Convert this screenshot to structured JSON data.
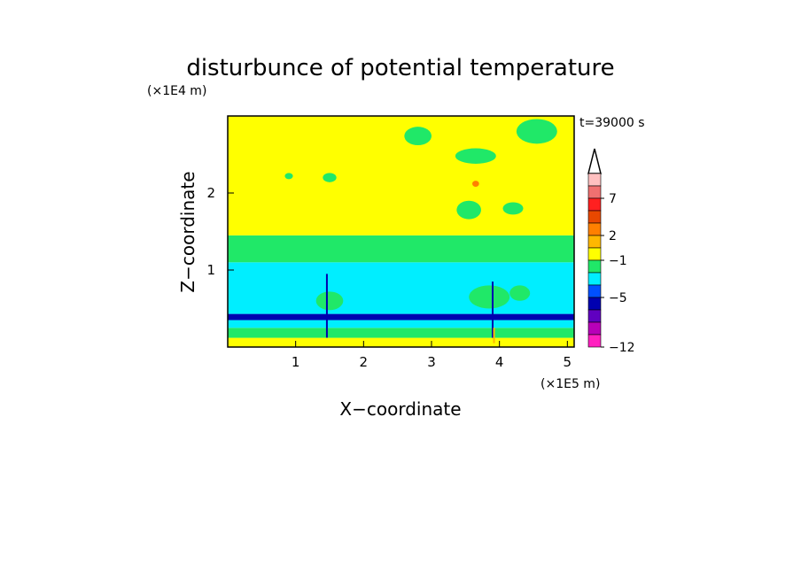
{
  "chart_data": {
    "type": "heatmap",
    "title": "disturbunce of potential temperature",
    "time_label": "t=39000 s",
    "xlabel": "X−coordinate",
    "ylabel": "Z−coordinate",
    "x_unit": "(×1E5 m)",
    "y_unit": "(×1E4 m)",
    "x_ticks": [
      "1",
      "2",
      "3",
      "4",
      "5"
    ],
    "y_ticks": [
      "1",
      "2"
    ],
    "xlim": [
      0,
      5.1
    ],
    "ylim": [
      0,
      3.0
    ],
    "colorbar": {
      "labels": [
        "7",
        "2",
        "−1",
        "−5",
        "−12"
      ],
      "colors": [
        "#ffc0c0",
        "#f07070",
        "#ff2020",
        "#e84800",
        "#ff8000",
        "#ffb800",
        "#ffff00",
        "#20e868",
        "#00eeff",
        "#0050ff",
        "#0000b0",
        "#6000c0",
        "#b800b8",
        "#ff20c0"
      ],
      "extend_top": true
    },
    "bands": [
      {
        "z": [
          0.0,
          0.12
        ],
        "color": "#ffff00"
      },
      {
        "z": [
          0.12,
          0.25
        ],
        "color": "#20e868"
      },
      {
        "z": [
          0.25,
          0.35
        ],
        "color": "#00eeff"
      },
      {
        "z": [
          0.35,
          0.43
        ],
        "color": "#0000b0"
      },
      {
        "z": [
          0.43,
          1.1
        ],
        "color": "#00eeff"
      },
      {
        "z": [
          1.1,
          1.45
        ],
        "color": "#20e868"
      },
      {
        "z": [
          1.45,
          3.0
        ],
        "color": "#ffff00"
      }
    ],
    "patches": [
      {
        "x": 2.8,
        "z": 2.74,
        "rx": 0.2,
        "rz": 0.12,
        "color": "#20e868"
      },
      {
        "x": 4.55,
        "z": 2.8,
        "rx": 0.3,
        "rz": 0.16,
        "color": "#20e868"
      },
      {
        "x": 3.65,
        "z": 2.48,
        "rx": 0.3,
        "rz": 0.1,
        "color": "#20e868"
      },
      {
        "x": 3.55,
        "z": 1.78,
        "rx": 0.18,
        "rz": 0.12,
        "color": "#20e868"
      },
      {
        "x": 4.2,
        "z": 1.8,
        "rx": 0.15,
        "rz": 0.08,
        "color": "#20e868"
      },
      {
        "x": 0.9,
        "z": 2.22,
        "rx": 0.06,
        "rz": 0.04,
        "color": "#20e868"
      },
      {
        "x": 1.5,
        "z": 2.2,
        "rx": 0.1,
        "rz": 0.06,
        "color": "#20e868"
      },
      {
        "x": 3.65,
        "z": 2.12,
        "rx": 0.05,
        "rz": 0.04,
        "color": "#ff8000"
      },
      {
        "x": 1.5,
        "z": 0.6,
        "rx": 0.2,
        "rz": 0.12,
        "color": "#20e868"
      },
      {
        "x": 3.85,
        "z": 0.65,
        "rx": 0.3,
        "rz": 0.15,
        "color": "#20e868"
      },
      {
        "x": 4.3,
        "z": 0.7,
        "rx": 0.15,
        "rz": 0.1,
        "color": "#20e868"
      }
    ],
    "spikes": [
      {
        "x": 1.46,
        "z": [
          0.12,
          0.95
        ],
        "color": "#0000b0"
      },
      {
        "x": 3.9,
        "z": [
          0.12,
          0.85
        ],
        "color": "#0000b0"
      },
      {
        "x": 3.92,
        "z": [
          0.05,
          0.25
        ],
        "color": "#ffb800"
      }
    ]
  }
}
